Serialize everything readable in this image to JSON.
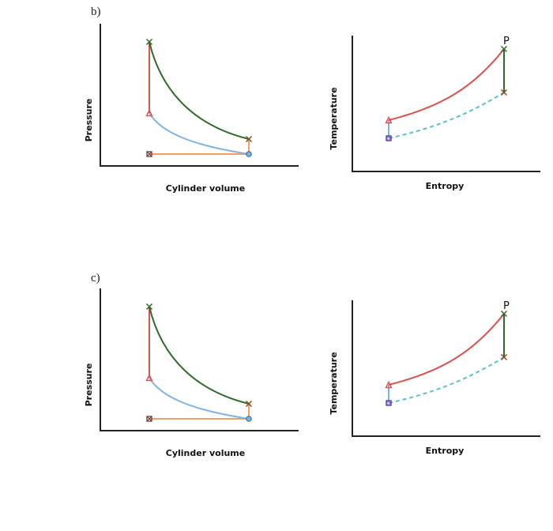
{
  "figure": {
    "panels": [
      {
        "label": "b)",
        "pv": {
          "xlabel": "Cylinder volume",
          "ylabel": "Pressure"
        },
        "ts": {
          "xlabel": "Entropy",
          "ylabel": "Temperature",
          "point_label": "P"
        }
      },
      {
        "label": "c)",
        "pv": {
          "xlabel": "Cylinder volume",
          "ylabel": "Pressure"
        },
        "ts": {
          "xlabel": "Entropy",
          "ylabel": "Temperature",
          "point_label": "P"
        }
      }
    ]
  },
  "colors": {
    "compression": "#7fb3e0",
    "combustion": "#d9534f",
    "expansion": "#2e6b2a",
    "exhaust": "#f0a067",
    "ts_dashed": "#5bc0c8",
    "axis": "#222222"
  }
}
